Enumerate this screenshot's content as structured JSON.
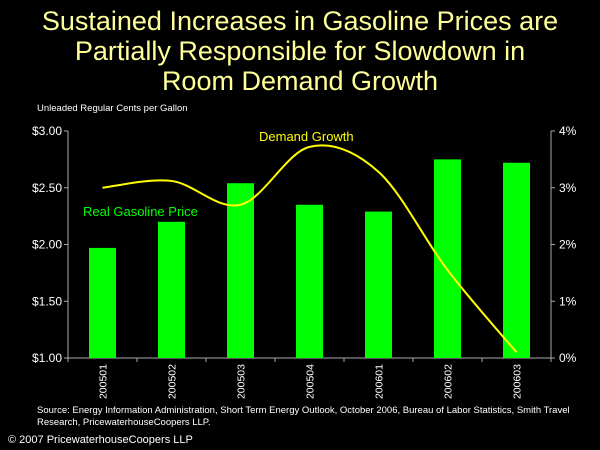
{
  "title_lines": [
    "Sustained Increases in Gasoline Prices are",
    "Partially Responsible for Slowdown in",
    "Room Demand Growth"
  ],
  "units_label": "Unleaded Regular Cents per Gallon",
  "source": "Source: Energy Information Administration, Short Term Energy Outlook, October 2006, Bureau of Labor Statistics, Smith Travel Research, PricewaterhouseCoopers LLP.",
  "copyright": "© 2007 PricewaterhouseCoopers LLP",
  "chart_data": {
    "type": "bar",
    "categories": [
      "200501",
      "200502",
      "200503",
      "200504",
      "200601",
      "200602",
      "200603"
    ],
    "series": [
      {
        "name": "Real Gasoline Price",
        "type": "bar",
        "axis": "left",
        "color": "#00ff00",
        "values": [
          1.97,
          2.2,
          2.54,
          2.35,
          2.29,
          2.75,
          2.72
        ]
      },
      {
        "name": "Demand Growth",
        "type": "line",
        "axis": "right",
        "color": "#ffff00",
        "values": [
          3.0,
          3.12,
          2.7,
          3.72,
          3.28,
          1.55,
          0.1
        ]
      }
    ],
    "left_axis": {
      "range": [
        1.0,
        3.0
      ],
      "ticks": [
        "$1.00",
        "$1.50",
        "$2.00",
        "$2.50",
        "$3.00"
      ]
    },
    "right_axis": {
      "range": [
        0,
        4
      ],
      "ticks": [
        "0%",
        "1%",
        "2%",
        "3%",
        "4%"
      ]
    },
    "grid": false,
    "legend": "inline labels"
  }
}
